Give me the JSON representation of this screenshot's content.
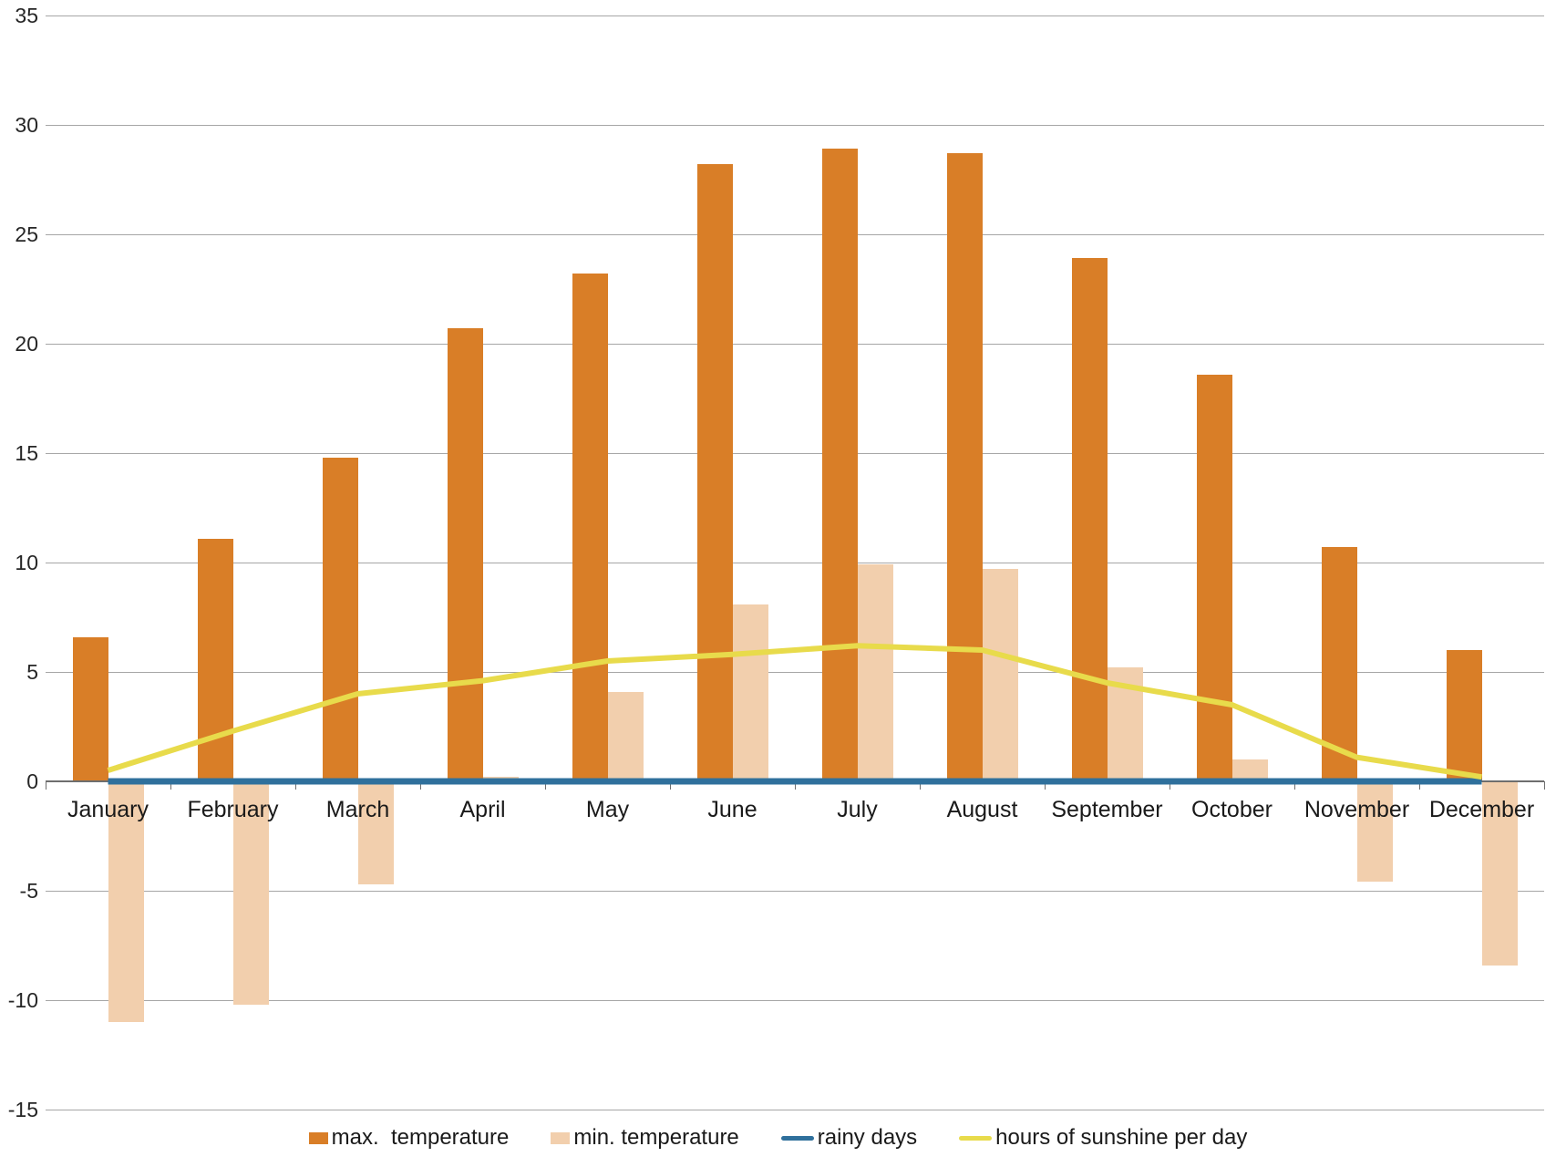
{
  "chart_data": {
    "type": "bar",
    "title": "",
    "xlabel": "",
    "ylabel": "",
    "categories": [
      "January",
      "February",
      "March",
      "April",
      "May",
      "June",
      "July",
      "August",
      "September",
      "October",
      "November",
      "December"
    ],
    "series": [
      {
        "name": "max.  temperature",
        "type": "bar",
        "color": "#D97E27",
        "values": [
          6.6,
          11.1,
          14.8,
          20.7,
          23.2,
          28.2,
          28.9,
          28.7,
          23.9,
          18.6,
          10.7,
          6.0
        ]
      },
      {
        "name": "min. temperature",
        "type": "bar",
        "color": "#F2CFAD",
        "values": [
          -11.0,
          -10.2,
          -4.7,
          0.2,
          4.1,
          8.1,
          9.9,
          9.7,
          5.2,
          1.0,
          -4.6,
          -8.4
        ]
      },
      {
        "name": "rainy days",
        "type": "line",
        "color": "#2F709C",
        "values": [
          0,
          0,
          0,
          0,
          0,
          0,
          0,
          0,
          0,
          0,
          0,
          0
        ]
      },
      {
        "name": "hours of sunshine per day",
        "type": "line",
        "color": "#E8DB4B",
        "values": [
          0.5,
          2.3,
          4.0,
          4.6,
          5.5,
          5.8,
          6.2,
          6.0,
          4.5,
          3.5,
          1.1,
          0.2
        ]
      }
    ],
    "ylim": [
      -15,
      35
    ],
    "yticks": [
      35,
      30,
      25,
      20,
      15,
      10,
      5,
      0,
      -5,
      -10,
      -15
    ],
    "grid": "horizontal",
    "grid_color": "#A6A6A6",
    "axis_color": "#6E6E6E",
    "text_color": "#262626",
    "legend_position": "bottom"
  }
}
